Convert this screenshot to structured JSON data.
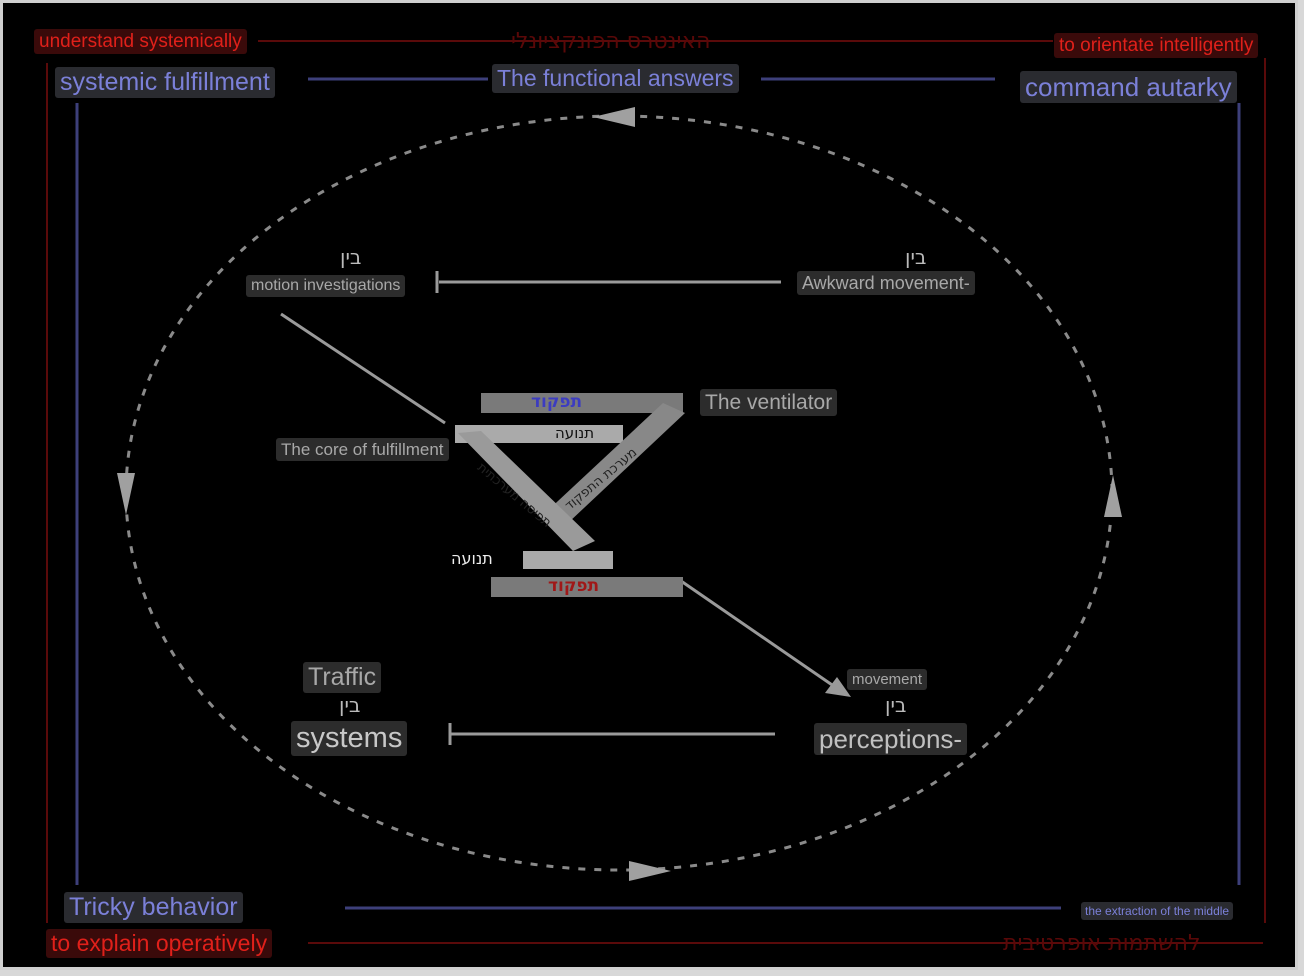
{
  "corners": {
    "top_left_red": "understand systemically",
    "top_right_red": "to orientate intelligently",
    "bottom_left_red": "to explain operatively",
    "top_center_hebrew": "האינטרס הפונקציונלי",
    "bottom_right_hebrew": "להשתמות אופרטיבית"
  },
  "blue_labels": {
    "systemic_fulfillment": "systemic fulfillment",
    "functional_answers": "The functional answers",
    "command_autarky": "command autarky",
    "tricky_behavior": "Tricky behavior",
    "extraction_middle": "the extraction of the middle"
  },
  "inner": {
    "motion_investigations": "motion investigations",
    "awkward_movement": "Awkward movement-",
    "ventilator": "The ventilator",
    "core_fulfillment": "The core of fulfillment",
    "traffic": "Traffic",
    "systems": "systems",
    "movement": "movement",
    "perceptions": "perceptions-",
    "between_mark": "בין"
  },
  "zshape": {
    "top_blue": "תפקוד",
    "top_white": "תנועה",
    "diag_a": "תפיסה מערכתית",
    "diag_b": "מערכת התפקוד",
    "bottom_white": "תנועה",
    "bottom_red": "תפקוד"
  },
  "colors": {
    "red_line": "#6a0c0c",
    "blue_line": "#3d3f7a",
    "gray_line": "#9a9a9a",
    "dashed_circle": "#8a8a8a"
  }
}
